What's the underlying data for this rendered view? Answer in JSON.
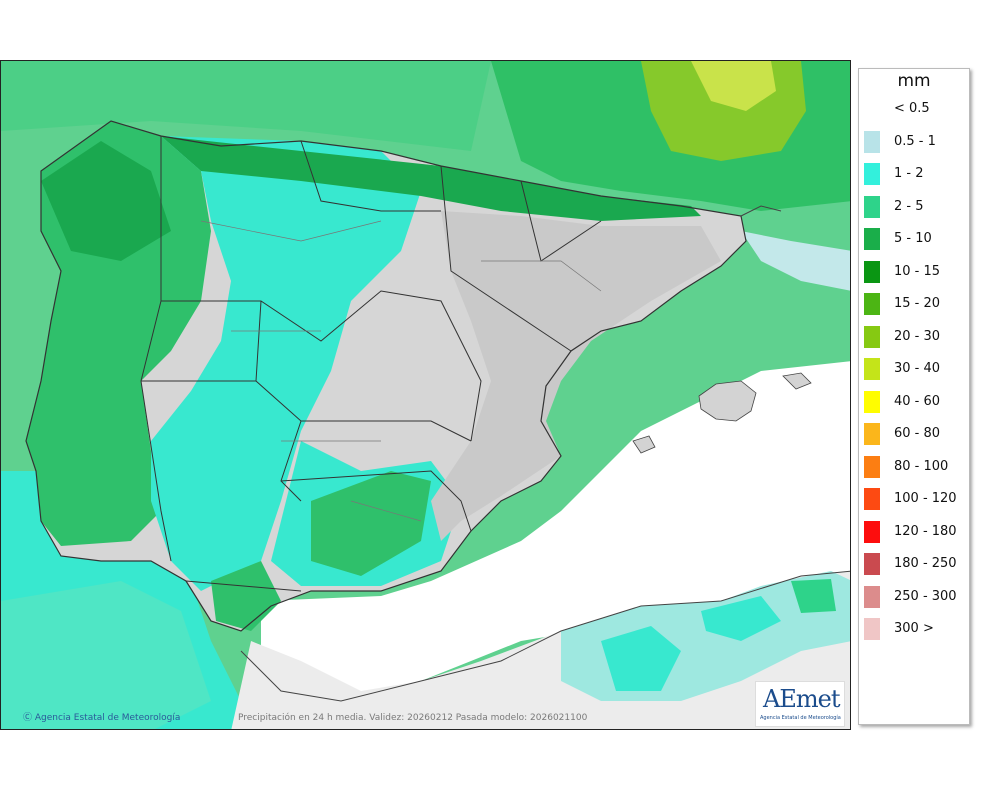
{
  "legend": {
    "title": "mm",
    "items": [
      {
        "label": "< 0.5",
        "color": "#ffffff"
      },
      {
        "label": "0.5 - 1",
        "color": "#b8e3e8"
      },
      {
        "label": "1 - 2",
        "color": "#33f0dc"
      },
      {
        "label": "2 - 5",
        "color": "#2ed38a"
      },
      {
        "label": "5 - 10",
        "color": "#1aae4a"
      },
      {
        "label": "10 - 15",
        "color": "#0a9613"
      },
      {
        "label": "15 - 20",
        "color": "#4cb514"
      },
      {
        "label": "20 - 30",
        "color": "#86c912"
      },
      {
        "label": "30 - 40",
        "color": "#c4e419"
      },
      {
        "label": "40 - 60",
        "color": "#fffd00"
      },
      {
        "label": "60 - 80",
        "color": "#fbb61b"
      },
      {
        "label": "80 - 100",
        "color": "#fc7e12"
      },
      {
        "label": "100 - 120",
        "color": "#fd4a12"
      },
      {
        "label": "120 - 180",
        "color": "#fd0d0d"
      },
      {
        "label": "180 - 250",
        "color": "#ca4a4f"
      },
      {
        "label": "250 - 300",
        "color": "#dc8c8c"
      },
      {
        "label": "300 >",
        "color": "#f0c6c6"
      }
    ]
  },
  "credit": "Agencia Estatal de Meteorología",
  "caption": "Precipitación en 24 h media. Validez: 20260212 Pasada modelo: 2026021100",
  "logo": {
    "word": "AEmet",
    "subtitle": "Agencia Estatal de Meteorología"
  }
}
